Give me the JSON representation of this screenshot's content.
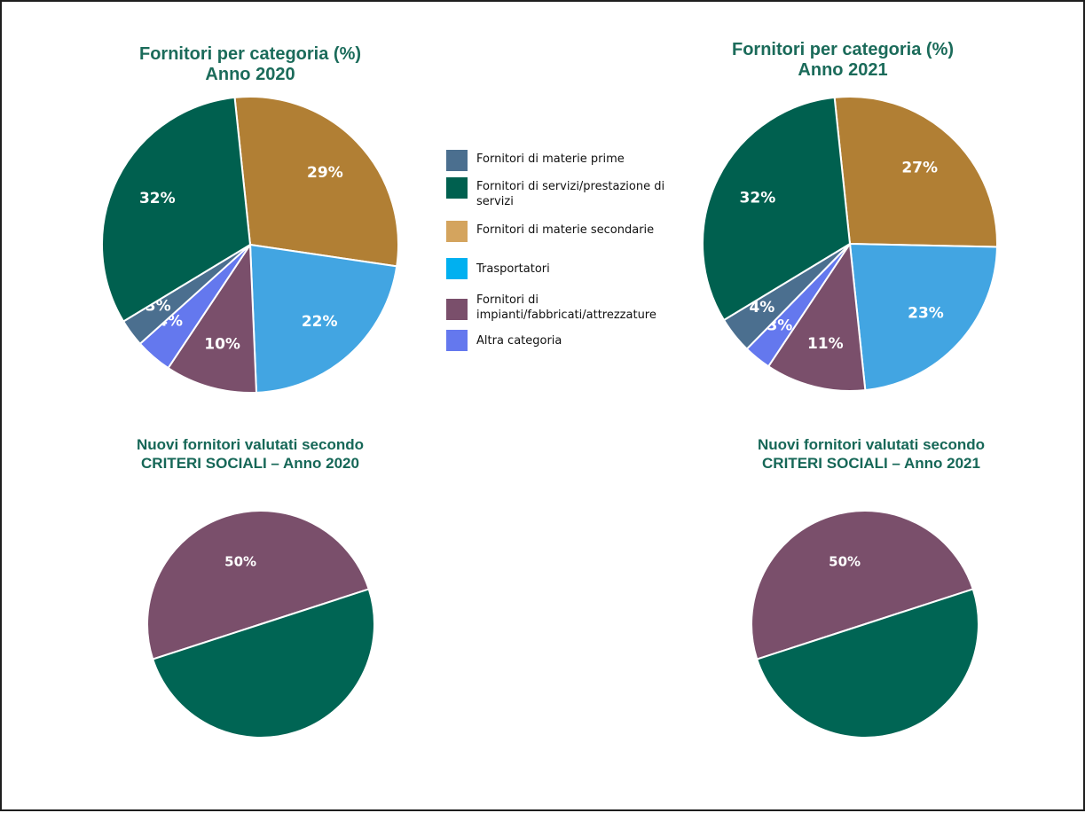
{
  "legend": {
    "items": [
      {
        "label": "Fornitori di materie prime",
        "color": "#4b6f8f"
      },
      {
        "label": "Fornitori di servizi/prestazione di servizi",
        "color": "#00604f"
      },
      {
        "label": "Fornitori di materie secondarie",
        "color": "#d4a45e"
      },
      {
        "label": "Trasportatori",
        "color": "#00b0f0"
      },
      {
        "label": "Fornitori di impianti/fabbricati/attrezzature",
        "color": "#7a4f6b"
      },
      {
        "label": "Altra categoria",
        "color": "#6478ee"
      }
    ]
  },
  "chart_data": [
    {
      "type": "pie",
      "title": [
        "Fornitori per categoria (%)",
        "Anno 2020"
      ],
      "slices": [
        {
          "category": "Fornitori di materie secondarie",
          "value": 29,
          "label": "29%",
          "color": "#b17f34"
        },
        {
          "category": "Trasportatori",
          "value": 22,
          "label": "22%",
          "color": "#42a5e2"
        },
        {
          "category": "Fornitori di impianti/fabbricati/attrezzature",
          "value": 10,
          "label": "10%",
          "color": "#7a4f6b"
        },
        {
          "category": "Altra categoria",
          "value": 4,
          "label": "4%",
          "color": "#6478ee"
        },
        {
          "category": "Fornitori di materie prime",
          "value": 3,
          "label": "3%",
          "color": "#4b6f8f"
        },
        {
          "category": "Fornitori di servizi/prestazione di servizi",
          "value": 32,
          "label": "32%",
          "color": "#00604f"
        }
      ]
    },
    {
      "type": "pie",
      "title": [
        "Fornitori per categoria (%)",
        "Anno 2021"
      ],
      "slices": [
        {
          "category": "Fornitori di materie secondarie",
          "value": 27,
          "label": "27%",
          "color": "#b17f34"
        },
        {
          "category": "Trasportatori",
          "value": 23,
          "label": "23%",
          "color": "#42a5e2"
        },
        {
          "category": "Fornitori di impianti/fabbricati/attrezzature",
          "value": 11,
          "label": "11%",
          "color": "#7a4f6b"
        },
        {
          "category": "Altra categoria",
          "value": 3,
          "label": "3%",
          "color": "#6478ee"
        },
        {
          "category": "Fornitori di materie prime",
          "value": 4,
          "label": "4%",
          "color": "#4b6f8f"
        },
        {
          "category": "Fornitori di servizi/prestazione di servizi",
          "value": 32,
          "label": "32%",
          "color": "#00604f"
        }
      ]
    },
    {
      "type": "pie",
      "title": [
        "Nuovi fornitori valutati secondo",
        "CRITERI SOCIALI – Anno 2020"
      ],
      "slices": [
        {
          "value": 50,
          "label": "50%",
          "color": "#7a4f6b"
        },
        {
          "value": 50,
          "label": "",
          "color": "#006554"
        }
      ]
    },
    {
      "type": "pie",
      "title": [
        "Nuovi fornitori valutati secondo",
        "CRITERI SOCIALI – Anno 2021"
      ],
      "slices": [
        {
          "value": 50,
          "label": "50%",
          "color": "#7a4f6b"
        },
        {
          "value": 50,
          "label": "",
          "color": "#006554"
        }
      ]
    }
  ]
}
